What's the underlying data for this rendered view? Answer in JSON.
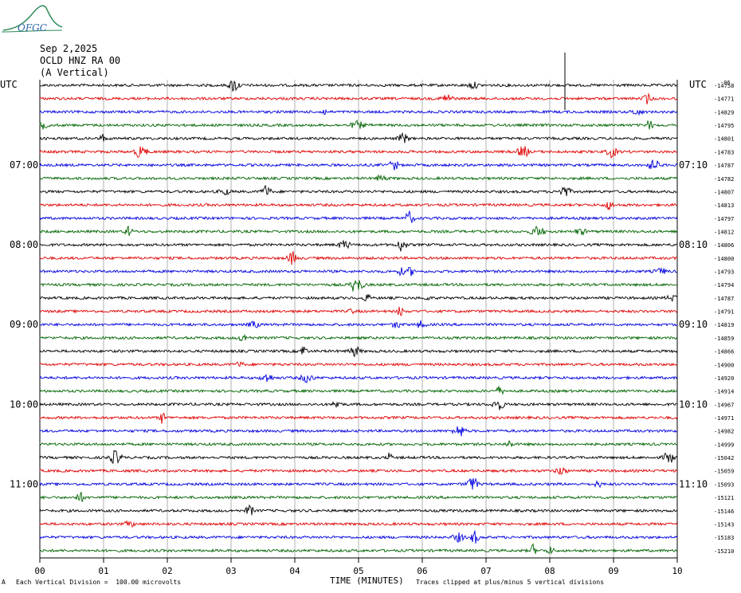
{
  "header": {
    "date": "Sep 2,2025",
    "station": "OCLD HNZ RA 00",
    "component": "(A Vertical)",
    "logo_text": "OFGC"
  },
  "footer": {
    "scale_note": "Each Vertical Division =  100.00 microvolts",
    "clip_note": "Traces clipped at plus/minus 5 vertical divisions",
    "left_mark": "A"
  },
  "chart_data": {
    "type": "line",
    "title": "",
    "xlabel": "TIME (MINUTES)",
    "ylabel": "",
    "xlim": [
      0,
      10
    ],
    "x_ticks": [
      "00",
      "01",
      "02",
      "03",
      "04",
      "05",
      "06",
      "07",
      "08",
      "09",
      "10"
    ],
    "left_axis_label": "UTC",
    "right_axis_label": "UTC",
    "left_time_labels": [
      {
        "row": 6,
        "label": "07:00"
      },
      {
        "row": 12,
        "label": "08:00"
      },
      {
        "row": 18,
        "label": "09:00"
      },
      {
        "row": 24,
        "label": "10:00"
      },
      {
        "row": 30,
        "label": "11:00"
      }
    ],
    "right_time_labels": [
      {
        "row": 6,
        "label": "07:10"
      },
      {
        "row": 12,
        "label": "08:10"
      },
      {
        "row": 18,
        "label": "09:10"
      },
      {
        "row": 24,
        "label": "10:10"
      },
      {
        "row": 30,
        "label": "11:10"
      }
    ],
    "first_row_prefix": "-06",
    "trace_colors": [
      "#000000",
      "#e00000",
      "#0000e0",
      "#006400"
    ],
    "trace_offsets": [
      "-14758",
      "-14771",
      "-14829",
      "-14795",
      "-14801",
      "-14783",
      "-14787",
      "-14782",
      "-14807",
      "-14813",
      "-14797",
      "-14812",
      "-14806",
      "-14800",
      "-14793",
      "-14794",
      "-14787",
      "-14791",
      "-14819",
      "-14859",
      "-14866",
      "-14900",
      "-14920",
      "-14914",
      "-14967",
      "-14971",
      "-14982",
      "-14999",
      "-15042",
      "-15059",
      "-15093",
      "-15121",
      "-15146",
      "-15143",
      "-15183",
      "-15210"
    ],
    "rows": 36,
    "grid": true
  }
}
